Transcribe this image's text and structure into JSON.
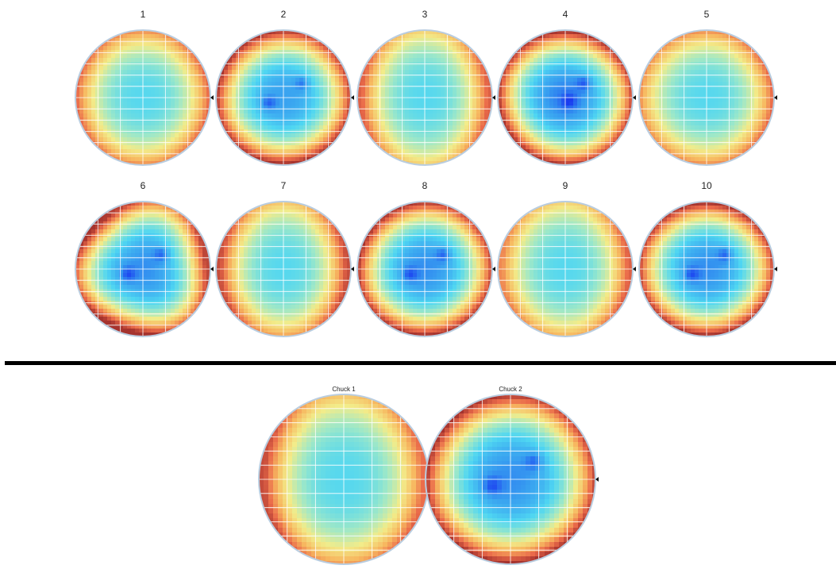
{
  "chart_data": {
    "type": "heatmap",
    "colormap": [
      "#1a3cf0",
      "#38a0f0",
      "#4fd6f2",
      "#9ee8c8",
      "#f2ec8a",
      "#f7b860",
      "#ea6a4a",
      "#a5332e"
    ],
    "grid": true,
    "notch_marker": "right",
    "groups": [
      {
        "wafers": [
          {
            "title": "1",
            "center_value": 0.3,
            "edge_value": 0.8,
            "pattern": "centered",
            "hot_sides": [
              "left",
              "right"
            ],
            "spots": []
          },
          {
            "title": "2",
            "center_value": 0.15,
            "edge_value": 0.95,
            "pattern": "centered",
            "hot_sides": [
              "top-left",
              "bottom"
            ],
            "spots": [
              {
                "label": "low",
                "pos": "upper-right"
              },
              {
                "label": "low",
                "pos": "center-left"
              }
            ]
          },
          {
            "title": "3",
            "center_value": 0.3,
            "edge_value": 0.8,
            "pattern": "vertical-band",
            "hot_sides": [
              "left",
              "right"
            ],
            "spots": []
          },
          {
            "title": "4",
            "center_value": 0.1,
            "edge_value": 0.95,
            "pattern": "centered",
            "hot_sides": [
              "top",
              "bottom-left"
            ],
            "spots": [
              {
                "label": "low",
                "pos": "upper-right"
              },
              {
                "label": "low",
                "pos": "center"
              }
            ]
          },
          {
            "title": "5",
            "center_value": 0.3,
            "edge_value": 0.8,
            "pattern": "centered",
            "hot_sides": [
              "right"
            ],
            "spots": []
          }
        ]
      },
      {
        "wafers": [
          {
            "title": "6",
            "center_value": 0.12,
            "edge_value": 0.95,
            "pattern": "triangular",
            "hot_sides": [
              "left",
              "bottom"
            ],
            "spots": [
              {
                "label": "low",
                "pos": "upper-right"
              },
              {
                "label": "low",
                "pos": "center-left"
              }
            ]
          },
          {
            "title": "7",
            "center_value": 0.3,
            "edge_value": 0.85,
            "pattern": "vertical-band",
            "hot_sides": [
              "left",
              "right",
              "bottom"
            ],
            "spots": []
          },
          {
            "title": "8",
            "center_value": 0.12,
            "edge_value": 0.95,
            "pattern": "centered",
            "hot_sides": [
              "top-left",
              "bottom"
            ],
            "spots": [
              {
                "label": "low",
                "pos": "upper-right"
              },
              {
                "label": "low",
                "pos": "center-left"
              }
            ]
          },
          {
            "title": "9",
            "center_value": 0.3,
            "edge_value": 0.8,
            "pattern": "vertical-band",
            "hot_sides": [
              "right",
              "bottom"
            ],
            "spots": []
          },
          {
            "title": "10",
            "center_value": 0.12,
            "edge_value": 0.95,
            "pattern": "centered",
            "hot_sides": [
              "top",
              "bottom"
            ],
            "spots": [
              {
                "label": "low",
                "pos": "upper-right"
              },
              {
                "label": "low",
                "pos": "center-left"
              }
            ]
          }
        ]
      },
      {
        "wafers": [
          {
            "title": "Chuck 1",
            "center_value": 0.3,
            "edge_value": 0.85,
            "pattern": "vertical-band",
            "hot_sides": [
              "left",
              "bottom"
            ],
            "spots": []
          },
          {
            "title": "Chuck 2",
            "center_value": 0.12,
            "edge_value": 0.95,
            "pattern": "centered",
            "hot_sides": [
              "top-left",
              "bottom"
            ],
            "spots": [
              {
                "label": "low",
                "pos": "upper-right"
              },
              {
                "label": "low",
                "pos": "center-left"
              }
            ]
          }
        ]
      }
    ]
  }
}
